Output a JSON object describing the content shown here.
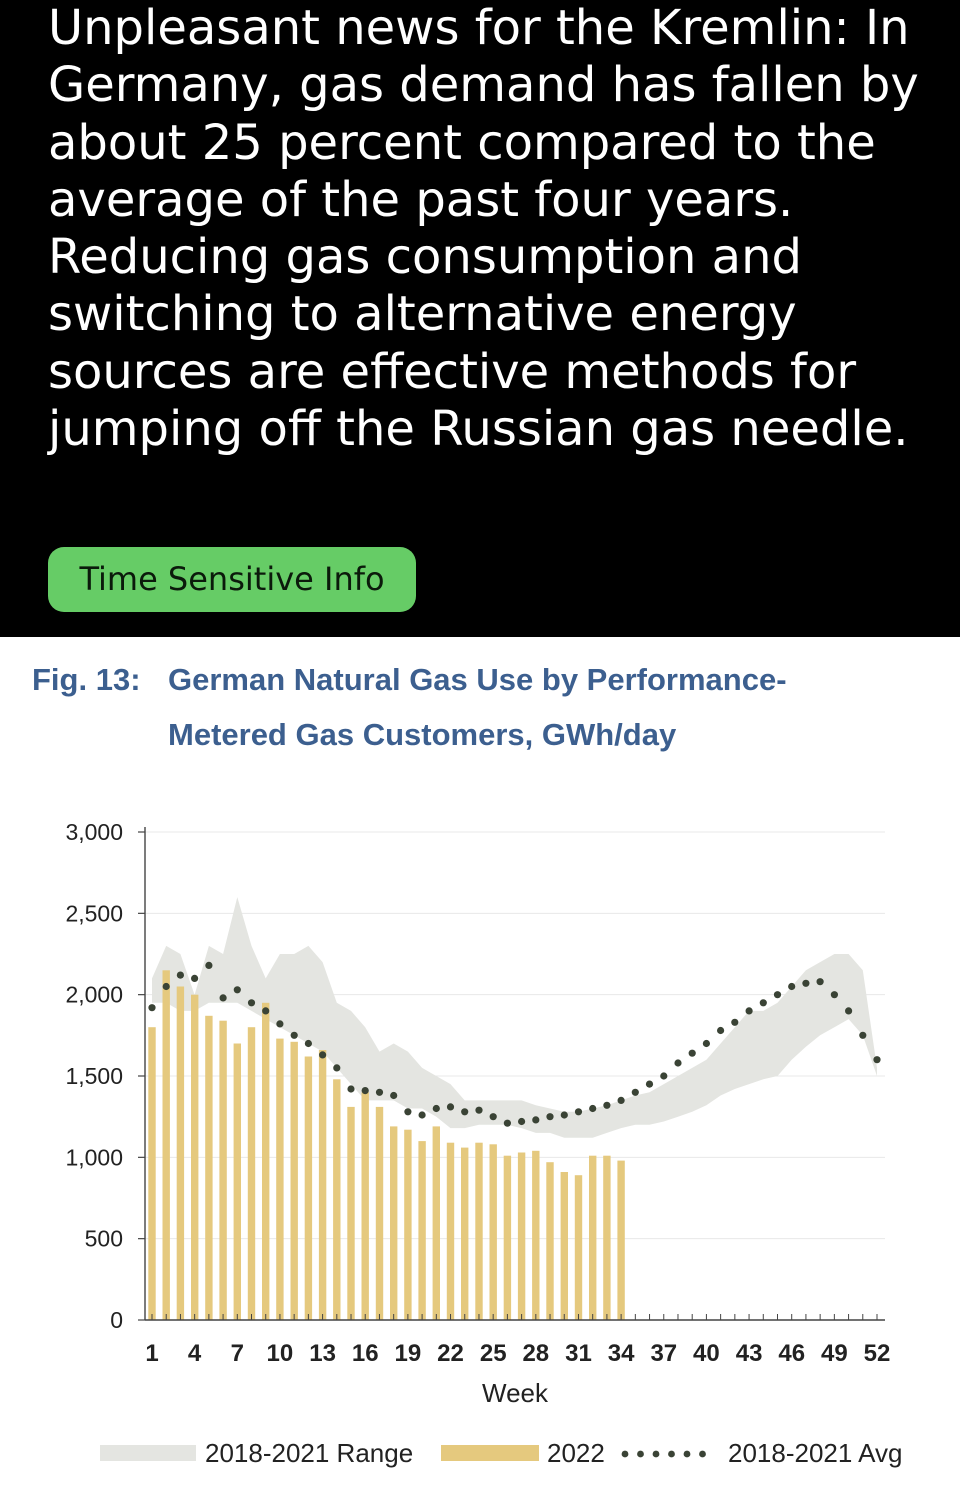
{
  "post": {
    "text": "Unpleasant news for the Kremlin: In Germany, gas demand has fallen by about 25 percent compared to the average of the past four years. Reducing gas consumption and switching to alternative energy sources are effective methods for jumping off the Russian gas needle.",
    "tag_label": "Time Sensitive Info",
    "tag_color": "#66cc66"
  },
  "chart_data": {
    "type": "bar",
    "fig_label": "Fig. 13:",
    "title_line1": "German Natural Gas Use by Performance-",
    "title_line2": "Metered Gas Customers, GWh/day",
    "xlabel": "Week",
    "ylabel": "",
    "ylim": [
      0,
      3000
    ],
    "yticks": [
      0,
      500,
      1000,
      1500,
      2000,
      2500,
      3000
    ],
    "ytick_labels": [
      "0",
      "500",
      "1,000",
      "1,500",
      "2,000",
      "2,500",
      "3,000"
    ],
    "xtick_labels": [
      "1",
      "4",
      "7",
      "10",
      "13",
      "16",
      "19",
      "22",
      "25",
      "28",
      "31",
      "34",
      "37",
      "40",
      "43",
      "46",
      "49",
      "52"
    ],
    "weeks": [
      1,
      2,
      3,
      4,
      5,
      6,
      7,
      8,
      9,
      10,
      11,
      12,
      13,
      14,
      15,
      16,
      17,
      18,
      19,
      20,
      21,
      22,
      23,
      24,
      25,
      26,
      27,
      28,
      29,
      30,
      31,
      32,
      33,
      34,
      35,
      36,
      37,
      38,
      39,
      40,
      41,
      42,
      43,
      44,
      45,
      46,
      47,
      48,
      49,
      50,
      51,
      52
    ],
    "grid": true,
    "series": [
      {
        "name": "2018-2021 Range",
        "kind": "band",
        "color": "#e4e5e1",
        "low": [
          1950,
          1950,
          1900,
          1900,
          1950,
          1950,
          1950,
          1900,
          1850,
          1800,
          1750,
          1700,
          1650,
          1550,
          1450,
          1350,
          1350,
          1350,
          1300,
          1300,
          1250,
          1180,
          1180,
          1200,
          1200,
          1200,
          1180,
          1150,
          1150,
          1120,
          1120,
          1120,
          1150,
          1180,
          1200,
          1200,
          1220,
          1250,
          1280,
          1320,
          1380,
          1420,
          1450,
          1480,
          1500,
          1600,
          1680,
          1750,
          1800,
          1850,
          1750,
          1500
        ],
        "high": [
          2100,
          2300,
          2250,
          2000,
          2300,
          2250,
          2600,
          2300,
          2100,
          2250,
          2250,
          2300,
          2200,
          1950,
          1900,
          1800,
          1650,
          1700,
          1650,
          1550,
          1500,
          1450,
          1350,
          1350,
          1350,
          1350,
          1350,
          1320,
          1300,
          1280,
          1280,
          1300,
          1320,
          1350,
          1380,
          1400,
          1450,
          1500,
          1550,
          1600,
          1700,
          1800,
          1900,
          1900,
          1950,
          2050,
          2150,
          2200,
          2250,
          2250,
          2150,
          1550
        ]
      },
      {
        "name": "2022",
        "kind": "bar",
        "color": "#e5c97e",
        "values": [
          1800,
          2150,
          2050,
          2000,
          1870,
          1840,
          1700,
          1800,
          1950,
          1730,
          1710,
          1620,
          1660,
          1480,
          1310,
          1400,
          1310,
          1190,
          1170,
          1100,
          1190,
          1090,
          1060,
          1090,
          1080,
          1010,
          1030,
          1040,
          970,
          910,
          890,
          1010,
          1010,
          980
        ]
      },
      {
        "name": "2018-2021 Avg",
        "kind": "dotted-line",
        "color": "#3a4335",
        "values": [
          1920,
          2050,
          2120,
          2100,
          2180,
          1980,
          2030,
          1950,
          1900,
          1820,
          1750,
          1700,
          1630,
          1550,
          1420,
          1410,
          1400,
          1380,
          1280,
          1260,
          1300,
          1310,
          1280,
          1290,
          1250,
          1210,
          1220,
          1230,
          1250,
          1260,
          1280,
          1300,
          1320,
          1350,
          1400,
          1450,
          1500,
          1580,
          1640,
          1700,
          1780,
          1830,
          1900,
          1950,
          2000,
          2050,
          2070,
          2080,
          2000,
          1900,
          1750,
          1600
        ]
      }
    ],
    "legend": {
      "placement": "bottom",
      "items": [
        "2018-2021 Range",
        "2022",
        "2018-2021 Avg"
      ]
    }
  }
}
